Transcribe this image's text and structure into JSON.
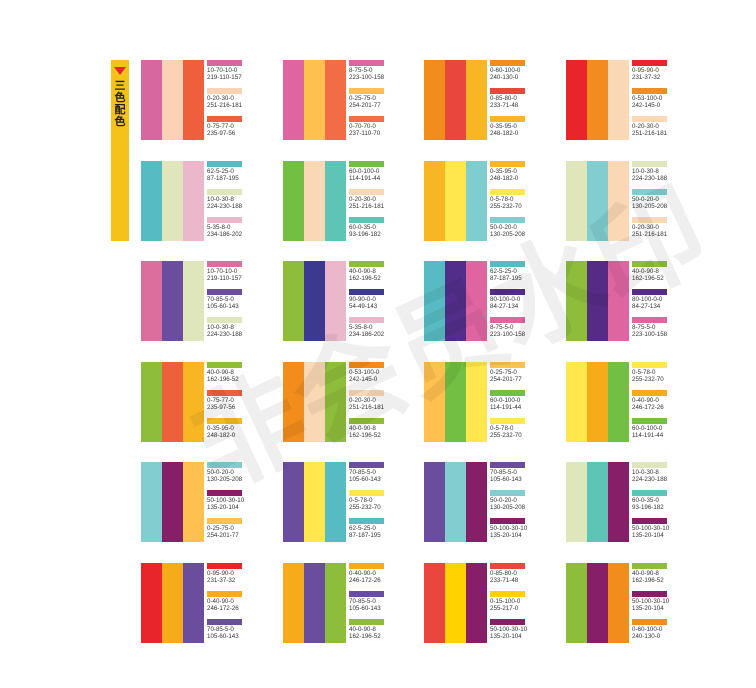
{
  "side_tab": {
    "label": "三色配色"
  },
  "watermark": "非会员水印",
  "cards": [
    {
      "colors": [
        "#d6679f",
        "#fbd2b5",
        "#ee5f3e"
      ],
      "codes": [
        [
          "10-70-10-0",
          "219-110-157"
        ],
        [
          "0-20-30-0",
          "251-216-181"
        ],
        [
          "0-75-77-0",
          "235-97-56"
        ]
      ]
    },
    {
      "colors": [
        "#df65a0",
        "#fec04e",
        "#f26d45"
      ],
      "codes": [
        [
          "8-75-5-0",
          "223-100-158"
        ],
        [
          "0-25-75-0",
          "254-201-77"
        ],
        [
          "0-70-70-0",
          "237-110-70"
        ]
      ]
    },
    {
      "colors": [
        "#f28c1c",
        "#e9473e",
        "#f8b624"
      ],
      "codes": [
        [
          "0-60-100-0",
          "240-130-0"
        ],
        [
          "0-85-80-0",
          "233-71-48"
        ],
        [
          "0-35-95-0",
          "248-182-0"
        ]
      ]
    },
    {
      "colors": [
        "#e7252a",
        "#f28c20",
        "#fbd8b5"
      ],
      "codes": [
        [
          "0-95-90-0",
          "231-37-32"
        ],
        [
          "0-53-100-0",
          "242-145-0"
        ],
        [
          "0-20-30-0",
          "251-216-181"
        ]
      ]
    },
    {
      "colors": [
        "#57bbc3",
        "#dfe6bc",
        "#eab8ca"
      ],
      "codes": [
        [
          "62-5-25-0",
          "87-187-195"
        ],
        [
          "10-0-30-8",
          "224-230-188"
        ],
        [
          "5-35-8-0",
          "234-186-202"
        ]
      ]
    },
    {
      "colors": [
        "#72bf44",
        "#fbd8b5",
        "#5dc4b6"
      ],
      "codes": [
        [
          "60-0-100-0",
          "114-191-44"
        ],
        [
          "0-20-30-0",
          "251-216-181"
        ],
        [
          "60-0-35-0",
          "93-196-182"
        ]
      ]
    },
    {
      "colors": [
        "#f8b624",
        "#ffe74d",
        "#7fcdd0"
      ],
      "codes": [
        [
          "0-35-95-0",
          "248-182-0"
        ],
        [
          "0-5-78-0",
          "255-232-70"
        ],
        [
          "50-0-20-0",
          "130-205-208"
        ]
      ]
    },
    {
      "colors": [
        "#dfe6bc",
        "#82cdd0",
        "#fbd8b5"
      ],
      "codes": [
        [
          "10-0-30-8",
          "224-230-188"
        ],
        [
          "50-0-20-0",
          "130-205-208"
        ],
        [
          "0-20-30-0",
          "251-216-181"
        ]
      ]
    },
    {
      "colors": [
        "#db6e9d",
        "#6b4d9d",
        "#dfe6bc"
      ],
      "codes": [
        [
          "10-70-10-0",
          "219-110-157"
        ],
        [
          "70-85-5-0",
          "105-60-143"
        ],
        [
          "10-0-30-8",
          "224-230-188"
        ]
      ]
    },
    {
      "colors": [
        "#8dbd3a",
        "#3b3a8f",
        "#eab8ca"
      ],
      "codes": [
        [
          "40-0-90-8",
          "162-196-52"
        ],
        [
          "90-90-0-0",
          "54-49-143"
        ],
        [
          "5-35-8-0",
          "234-186-202"
        ]
      ]
    },
    {
      "colors": [
        "#57bbc3",
        "#522e8a",
        "#df65a0"
      ],
      "codes": [
        [
          "62-5-25-0",
          "87-187-195"
        ],
        [
          "80-100-0-0",
          "84-27-134"
        ],
        [
          "8-75-5-0",
          "223-100-158"
        ]
      ]
    },
    {
      "colors": [
        "#8dbd3a",
        "#562b86",
        "#df65a0"
      ],
      "codes": [
        [
          "40-0-90-8",
          "162-196-52"
        ],
        [
          "80-100-0-0",
          "84-27-134"
        ],
        [
          "8-75-5-0",
          "223-100-158"
        ]
      ]
    },
    {
      "colors": [
        "#8dbd3a",
        "#ec603d",
        "#f8b624"
      ],
      "codes": [
        [
          "40-0-90-8",
          "162-196-52"
        ],
        [
          "0-75-77-0",
          "235-97-56"
        ],
        [
          "0-35-95-0",
          "248-182-0"
        ]
      ]
    },
    {
      "colors": [
        "#f28c1c",
        "#fbd8b5",
        "#8dbd3a"
      ],
      "codes": [
        [
          "0-53-100-0",
          "242-145-0"
        ],
        [
          "0-20-30-0",
          "251-216-181"
        ],
        [
          "40-0-90-8",
          "162-196-52"
        ]
      ]
    },
    {
      "colors": [
        "#fec04e",
        "#72bf44",
        "#ffe74d"
      ],
      "codes": [
        [
          "0-25-75-0",
          "254-201-77"
        ],
        [
          "60-0-100-0",
          "114-191-44"
        ],
        [
          "0-5-78-0",
          "255-232-70"
        ]
      ]
    },
    {
      "colors": [
        "#ffe74d",
        "#f6ac1a",
        "#72bf44"
      ],
      "codes": [
        [
          "0-5-78-0",
          "255-232-70"
        ],
        [
          "0-40-90-0",
          "246-172-26"
        ],
        [
          "60-0-100-0",
          "114-191-44"
        ]
      ]
    },
    {
      "colors": [
        "#82cdd0",
        "#871e68",
        "#fec04e"
      ],
      "codes": [
        [
          "50-0-20-0",
          "130-205-208"
        ],
        [
          "50-100-30-10",
          "135-20-104"
        ],
        [
          "0-25-75-0",
          "254-201-77"
        ]
      ]
    },
    {
      "colors": [
        "#6b4d9d",
        "#ffe74d",
        "#57bbc3"
      ],
      "codes": [
        [
          "70-85-5-0",
          "105-60-143"
        ],
        [
          "0-5-78-0",
          "255-232-70"
        ],
        [
          "62-5-25-0",
          "87-187-195"
        ]
      ]
    },
    {
      "colors": [
        "#6b4d9d",
        "#82cdd0",
        "#871e68"
      ],
      "codes": [
        [
          "70-85-5-0",
          "105-60-143"
        ],
        [
          "50-0-20-0",
          "130-205-208"
        ],
        [
          "50-100-30-10",
          "135-20-104"
        ]
      ]
    },
    {
      "colors": [
        "#dfe6bc",
        "#5dc4b6",
        "#871e68"
      ],
      "codes": [
        [
          "10-0-30-8",
          "224-230-188"
        ],
        [
          "60-0-35-0",
          "93-196-182"
        ],
        [
          "50-100-30-10",
          "135-20-104"
        ]
      ]
    },
    {
      "colors": [
        "#e7252a",
        "#f6ac1a",
        "#6b4d9d"
      ],
      "codes": [
        [
          "0-95-90-0",
          "231-37-32"
        ],
        [
          "0-40-90-0",
          "246-172-26"
        ],
        [
          "70-85-5-0",
          "105-60-143"
        ]
      ]
    },
    {
      "colors": [
        "#f6ac1a",
        "#6b4d9d",
        "#8dbd3a"
      ],
      "codes": [
        [
          "0-40-90-0",
          "246-172-26"
        ],
        [
          "70-85-5-0",
          "105-60-143"
        ],
        [
          "40-0-90-8",
          "162-196-52"
        ]
      ]
    },
    {
      "colors": [
        "#e9473e",
        "#ffd200",
        "#871e68"
      ],
      "codes": [
        [
          "0-85-80-0",
          "233-71-48"
        ],
        [
          "0-15-100-0",
          "255-217-0"
        ],
        [
          "50-100-30-10",
          "135-20-104"
        ]
      ]
    },
    {
      "colors": [
        "#8dbd3a",
        "#871e68",
        "#f28c1c"
      ],
      "codes": [
        [
          "40-0-90-8",
          "162-196-52"
        ],
        [
          "50-100-30-10",
          "135-20-104"
        ],
        [
          "0-60-100-0",
          "240-130-0"
        ]
      ]
    }
  ]
}
